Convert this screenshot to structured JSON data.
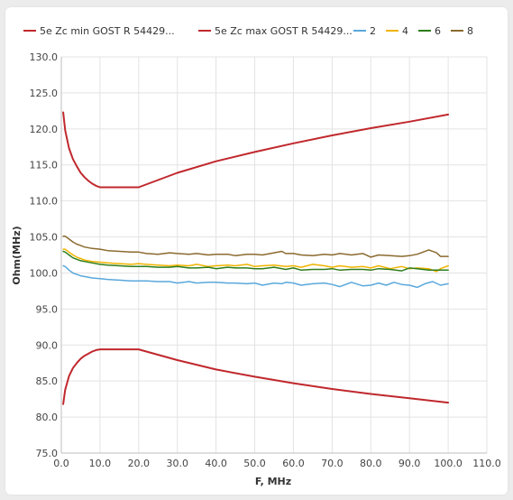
{
  "chart_data": {
    "type": "line",
    "title": "",
    "xlabel": "F, MHz",
    "ylabel": "Ohm(MHz)",
    "xlim": [
      0,
      110
    ],
    "ylim": [
      75,
      130
    ],
    "xticks": [
      0,
      10,
      20,
      30,
      40,
      50,
      60,
      70,
      80,
      90,
      100,
      110
    ],
    "yticks": [
      75,
      80,
      85,
      90,
      95,
      100,
      105,
      110,
      115,
      120,
      125,
      130
    ],
    "tick_decimals": 1,
    "grid": true,
    "legend_position": "top",
    "series": [
      {
        "name": "5e Zc min GOST R 54429...",
        "color": "#c0282d",
        "width": 2,
        "x": [
          0.5,
          1,
          2,
          3,
          4,
          5,
          6,
          7,
          8,
          9,
          10,
          20,
          30,
          40,
          50,
          60,
          70,
          80,
          90,
          100
        ],
        "y": [
          81.8,
          83.8,
          85.7,
          86.8,
          87.5,
          88.1,
          88.5,
          88.8,
          89.1,
          89.3,
          89.4,
          89.4,
          87.9,
          86.6,
          85.6,
          84.7,
          83.9,
          83.2,
          82.6,
          82.0
        ]
      },
      {
        "name": "5e Zc max GOST R 54429...",
        "color": "#c0282d",
        "width": 2,
        "x": [
          0.5,
          1,
          2,
          3,
          4,
          5,
          6,
          7,
          8,
          9,
          10,
          20,
          30,
          40,
          50,
          60,
          70,
          80,
          90,
          100
        ],
        "y": [
          122.3,
          119.8,
          117.3,
          115.8,
          114.8,
          113.9,
          113.3,
          112.8,
          112.4,
          112.1,
          111.9,
          111.9,
          113.9,
          115.5,
          116.8,
          118.0,
          119.1,
          120.1,
          121.0,
          122.0
        ]
      },
      {
        "name": "2",
        "color": "#5aa8dc",
        "width": 1.5,
        "x": [
          0.5,
          1,
          2,
          3,
          4,
          5,
          6,
          8,
          10,
          12,
          15,
          18,
          20,
          22,
          25,
          28,
          30,
          33,
          35,
          38,
          40,
          43,
          45,
          48,
          50,
          52,
          55,
          57,
          58,
          60,
          62,
          65,
          68,
          70,
          72,
          75,
          78,
          80,
          82,
          84,
          86,
          88,
          90,
          92,
          94,
          96,
          98,
          100
        ],
        "y": [
          101.0,
          100.9,
          100.4,
          100.0,
          99.8,
          99.6,
          99.5,
          99.3,
          99.2,
          99.1,
          99.0,
          98.9,
          98.9,
          98.9,
          98.8,
          98.8,
          98.6,
          98.8,
          98.6,
          98.7,
          98.7,
          98.6,
          98.6,
          98.5,
          98.6,
          98.3,
          98.6,
          98.5,
          98.7,
          98.6,
          98.3,
          98.5,
          98.6,
          98.4,
          98.1,
          98.7,
          98.2,
          98.3,
          98.6,
          98.3,
          98.7,
          98.4,
          98.3,
          98.0,
          98.5,
          98.8,
          98.3,
          98.5
        ]
      },
      {
        "name": "4",
        "color": "#f0b400",
        "width": 1.5,
        "x": [
          0.5,
          1,
          2,
          3,
          4,
          5,
          6,
          8,
          10,
          12,
          15,
          18,
          20,
          22,
          25,
          28,
          30,
          33,
          35,
          38,
          40,
          43,
          45,
          48,
          50,
          52,
          55,
          58,
          60,
          62,
          65,
          68,
          70,
          72,
          75,
          78,
          80,
          82,
          85,
          88,
          90,
          92,
          95,
          97,
          98,
          100
        ],
        "y": [
          103.3,
          103.3,
          102.9,
          102.5,
          102.2,
          102.0,
          101.8,
          101.6,
          101.5,
          101.4,
          101.3,
          101.2,
          101.3,
          101.2,
          101.1,
          101.0,
          101.1,
          101.0,
          101.2,
          100.9,
          101.0,
          101.1,
          101.0,
          101.2,
          100.9,
          101.0,
          101.1,
          100.9,
          101.0,
          100.8,
          101.2,
          101.0,
          100.8,
          101.0,
          100.8,
          100.9,
          100.7,
          101.0,
          100.6,
          100.9,
          100.6,
          100.7,
          100.6,
          100.2,
          100.6,
          101.0
        ]
      },
      {
        "name": "6",
        "color": "#2e7d1c",
        "width": 1.5,
        "x": [
          0.5,
          1,
          2,
          3,
          4,
          5,
          6,
          8,
          10,
          12,
          15,
          18,
          20,
          22,
          25,
          28,
          30,
          33,
          35,
          38,
          40,
          43,
          45,
          48,
          50,
          52,
          55,
          58,
          60,
          62,
          65,
          68,
          70,
          72,
          75,
          78,
          80,
          82,
          85,
          88,
          90,
          92,
          95,
          97,
          100
        ],
        "y": [
          103.0,
          102.9,
          102.5,
          102.1,
          101.9,
          101.7,
          101.6,
          101.4,
          101.2,
          101.1,
          101.0,
          100.9,
          100.9,
          100.9,
          100.8,
          100.8,
          100.9,
          100.7,
          100.7,
          100.8,
          100.6,
          100.8,
          100.7,
          100.7,
          100.6,
          100.6,
          100.8,
          100.5,
          100.7,
          100.4,
          100.5,
          100.5,
          100.6,
          100.4,
          100.5,
          100.5,
          100.4,
          100.6,
          100.5,
          100.3,
          100.7,
          100.6,
          100.4,
          100.4,
          100.4
        ]
      },
      {
        "name": "8",
        "color": "#8b6a2f",
        "width": 1.5,
        "x": [
          0.5,
          1,
          2,
          3,
          4,
          5,
          6,
          8,
          10,
          12,
          15,
          18,
          20,
          22,
          25,
          28,
          30,
          33,
          35,
          38,
          40,
          43,
          45,
          48,
          50,
          52,
          55,
          57,
          58,
          60,
          62,
          65,
          68,
          70,
          72,
          75,
          78,
          80,
          82,
          85,
          88,
          90,
          92,
          95,
          97,
          98,
          100
        ],
        "y": [
          105.1,
          105.1,
          104.7,
          104.3,
          104.0,
          103.8,
          103.6,
          103.4,
          103.3,
          103.1,
          103.0,
          102.9,
          102.9,
          102.7,
          102.6,
          102.8,
          102.7,
          102.6,
          102.7,
          102.5,
          102.6,
          102.6,
          102.4,
          102.6,
          102.6,
          102.5,
          102.8,
          103.0,
          102.7,
          102.7,
          102.5,
          102.4,
          102.6,
          102.5,
          102.7,
          102.5,
          102.7,
          102.2,
          102.5,
          102.4,
          102.3,
          102.4,
          102.6,
          103.2,
          102.8,
          102.3,
          102.3
        ]
      }
    ]
  }
}
